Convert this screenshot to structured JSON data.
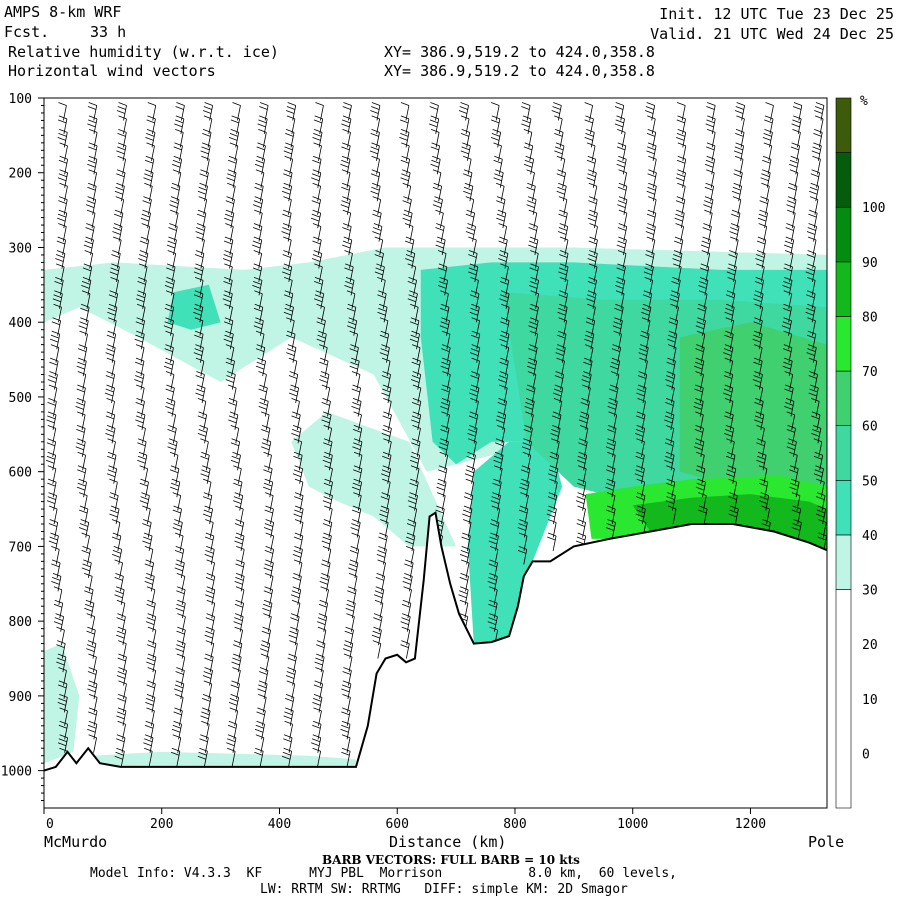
{
  "header": {
    "model": "AMPS 8-km WRF",
    "fcst_label": "Fcst.",
    "fcst_value": "33 h",
    "field1": "Relative humidity (w.r.t. ice)",
    "field2": "Horizontal wind vectors",
    "xy1": "XY= 386.9,519.2 to 424.0,358.8",
    "xy2": "XY= 386.9,519.2 to 424.0,358.8",
    "init": "Init. 12 UTC Tue 23 Dec 25",
    "valid": "Valid. 21 UTC Wed 24 Dec 25"
  },
  "chart_data": {
    "type": "heatmap",
    "xlabel": "Distance (km)",
    "ylabel": "",
    "x_endpoints": {
      "left": "McMurdo",
      "right": "Pole"
    },
    "xlim": [
      0,
      1330
    ],
    "ylim": [
      1050,
      100
    ],
    "x_ticks": [
      0,
      200,
      400,
      600,
      800,
      1000,
      1200
    ],
    "y_ticks": [
      100,
      200,
      300,
      400,
      500,
      600,
      700,
      800,
      900,
      1000
    ],
    "colorbar": {
      "unit": "%",
      "ticks": [
        0,
        10,
        20,
        30,
        40,
        50,
        60,
        70,
        80,
        90,
        100
      ],
      "levels": [
        {
          "from": -10,
          "to": 30,
          "color": "#ffffff"
        },
        {
          "from": 30,
          "to": 40,
          "color": "#c0f4e4"
        },
        {
          "from": 40,
          "to": 50,
          "color": "#40e0b8"
        },
        {
          "from": 50,
          "to": 60,
          "color": "#3ed8a0"
        },
        {
          "from": 60,
          "to": 70,
          "color": "#40d070"
        },
        {
          "from": 70,
          "to": 80,
          "color": "#2ae830"
        },
        {
          "from": 80,
          "to": 90,
          "color": "#12b81c"
        },
        {
          "from": 90,
          "to": 100,
          "color": "#048c10"
        },
        {
          "from": 100,
          "to": 110,
          "color": "#045c0c"
        },
        {
          "from": 110,
          "to": 120,
          "color": "#3c5c0c"
        }
      ]
    },
    "terrain_km_hpa": [
      [
        0,
        1000
      ],
      [
        20,
        995
      ],
      [
        40,
        975
      ],
      [
        55,
        990
      ],
      [
        75,
        970
      ],
      [
        95,
        990
      ],
      [
        130,
        995
      ],
      [
        300,
        995
      ],
      [
        400,
        995
      ],
      [
        530,
        995
      ],
      [
        550,
        940
      ],
      [
        565,
        870
      ],
      [
        580,
        850
      ],
      [
        600,
        845
      ],
      [
        615,
        855
      ],
      [
        630,
        850
      ],
      [
        645,
        745
      ],
      [
        655,
        660
      ],
      [
        665,
        655
      ],
      [
        675,
        700
      ],
      [
        690,
        750
      ],
      [
        705,
        790
      ],
      [
        730,
        830
      ],
      [
        760,
        828
      ],
      [
        790,
        820
      ],
      [
        805,
        780
      ],
      [
        815,
        740
      ],
      [
        830,
        720
      ],
      [
        860,
        720
      ],
      [
        900,
        700
      ],
      [
        960,
        690
      ],
      [
        1030,
        680
      ],
      [
        1100,
        670
      ],
      [
        1170,
        670
      ],
      [
        1240,
        680
      ],
      [
        1300,
        695
      ],
      [
        1330,
        705
      ]
    ],
    "rh_regions": [
      {
        "level": 35,
        "outline": [
          [
            0,
            330
          ],
          [
            120,
            320
          ],
          [
            340,
            330
          ],
          [
            450,
            320
          ],
          [
            580,
            300
          ],
          [
            900,
            300
          ],
          [
            1330,
            310
          ],
          [
            1330,
            480
          ],
          [
            1060,
            600
          ],
          [
            800,
            570
          ],
          [
            650,
            600
          ],
          [
            560,
            470
          ],
          [
            420,
            420
          ],
          [
            300,
            480
          ],
          [
            160,
            420
          ],
          [
            60,
            380
          ],
          [
            0,
            400
          ]
        ]
      },
      {
        "level": 35,
        "outline": [
          [
            480,
            520
          ],
          [
            620,
            560
          ],
          [
            700,
            700
          ],
          [
            620,
            700
          ],
          [
            560,
            660
          ],
          [
            500,
            640
          ],
          [
            450,
            620
          ],
          [
            420,
            560
          ]
        ]
      },
      {
        "level": 35,
        "outline": [
          [
            0,
            840
          ],
          [
            30,
            830
          ],
          [
            60,
            900
          ],
          [
            50,
            975
          ],
          [
            0,
            990
          ]
        ]
      },
      {
        "level": 35,
        "outline": [
          [
            80,
            980
          ],
          [
            200,
            975
          ],
          [
            450,
            980
          ],
          [
            530,
            985
          ],
          [
            530,
            995
          ],
          [
            80,
            995
          ]
        ]
      },
      {
        "level": 45,
        "outline": [
          [
            640,
            330
          ],
          [
            760,
            320
          ],
          [
            900,
            320
          ],
          [
            1150,
            330
          ],
          [
            1330,
            330
          ],
          [
            1330,
            600
          ],
          [
            1250,
            580
          ],
          [
            1080,
            570
          ],
          [
            900,
            560
          ],
          [
            760,
            560
          ],
          [
            700,
            590
          ],
          [
            660,
            560
          ],
          [
            640,
            420
          ]
        ]
      },
      {
        "level": 45,
        "outline": [
          [
            730,
            600
          ],
          [
            790,
            560
          ],
          [
            860,
            560
          ],
          [
            880,
            620
          ],
          [
            830,
            720
          ],
          [
            790,
            820
          ],
          [
            760,
            828
          ],
          [
            730,
            830
          ],
          [
            720,
            700
          ]
        ]
      },
      {
        "level": 45,
        "outline": [
          [
            220,
            360
          ],
          [
            280,
            350
          ],
          [
            300,
            400
          ],
          [
            250,
            410
          ],
          [
            210,
            400
          ]
        ]
      },
      {
        "level": 55,
        "outline": [
          [
            780,
            360
          ],
          [
            950,
            370
          ],
          [
            1150,
            370
          ],
          [
            1330,
            380
          ],
          [
            1330,
            620
          ],
          [
            1150,
            620
          ],
          [
            1000,
            640
          ],
          [
            900,
            620
          ],
          [
            820,
            560
          ]
        ]
      },
      {
        "level": 65,
        "outline": [
          [
            1080,
            420
          ],
          [
            1200,
            400
          ],
          [
            1330,
            430
          ],
          [
            1330,
            620
          ],
          [
            1200,
            625
          ],
          [
            1080,
            600
          ]
        ]
      },
      {
        "level": 75,
        "outline": [
          [
            920,
            630
          ],
          [
            1000,
            620
          ],
          [
            1100,
            610
          ],
          [
            1250,
            605
          ],
          [
            1330,
            620
          ],
          [
            1330,
            690
          ],
          [
            1300,
            695
          ],
          [
            1240,
            680
          ],
          [
            1170,
            670
          ],
          [
            1100,
            670
          ],
          [
            1030,
            680
          ],
          [
            960,
            690
          ],
          [
            930,
            690
          ]
        ]
      },
      {
        "level": 85,
        "outline": [
          [
            1000,
            645
          ],
          [
            1100,
            635
          ],
          [
            1200,
            630
          ],
          [
            1300,
            640
          ],
          [
            1330,
            650
          ],
          [
            1330,
            705
          ],
          [
            1300,
            695
          ],
          [
            1240,
            680
          ],
          [
            1170,
            670
          ],
          [
            1100,
            670
          ],
          [
            1030,
            680
          ]
        ]
      }
    ],
    "barb_columns_km": [
      30,
      80,
      130,
      180,
      230,
      280,
      330,
      380,
      430,
      480,
      530,
      580,
      630,
      680,
      730,
      780,
      830,
      880,
      930,
      980,
      1030,
      1080,
      1130,
      1180,
      1230,
      1280,
      1320
    ]
  },
  "footer": {
    "barb_note": "BARB VECTORS: FULL BARB = 10 kts",
    "model_info": "Model Info: V4.3.3  KF      MYJ PBL  Morrison           8.0 km,  60 levels,",
    "model_info2": "LW: RRTM SW: RRTMG   DIFF: simple KM: 2D Smagor"
  }
}
